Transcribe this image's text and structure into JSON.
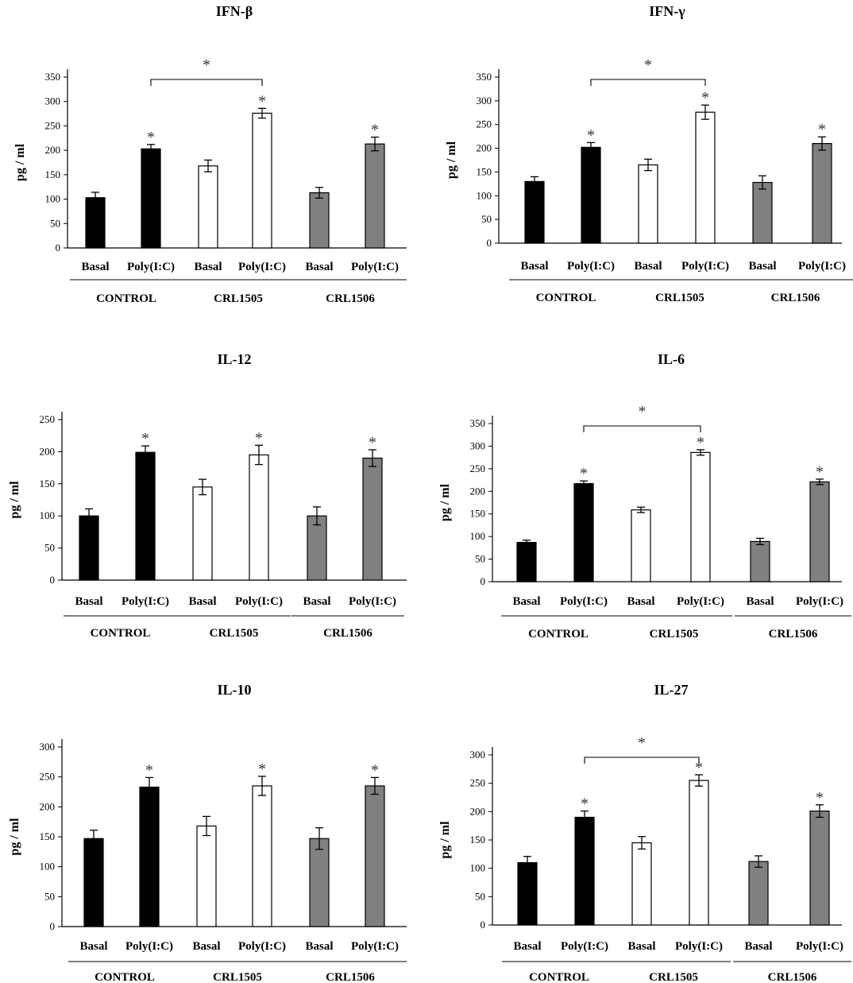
{
  "colors": {
    "CONTROL": "#000000",
    "CRL1505": "#ffffff",
    "CRL1506": "#808080",
    "axis": "#000000"
  },
  "chart_data": [
    {
      "type": "bar",
      "title": "IFN-β",
      "ylabel": "pg / ml",
      "ylim": [
        0,
        350
      ],
      "yticks": [
        "0",
        "50",
        "100",
        "150",
        "200",
        "250",
        "300",
        "350"
      ],
      "categories": [
        "Basal",
        "Poly(I:C)",
        "Basal",
        "Poly(I:C)",
        "Basal",
        "Poly(I:C)"
      ],
      "groups": [
        "CONTROL",
        "CRL1505",
        "CRL1506"
      ],
      "values": [
        103,
        203,
        168,
        276,
        113,
        213
      ],
      "errors": [
        11,
        9,
        12,
        10,
        11,
        14
      ],
      "significance": [
        false,
        true,
        false,
        true,
        false,
        true
      ],
      "bracket": {
        "from": 1,
        "to": 3,
        "label": "*"
      }
    },
    {
      "type": "bar",
      "title": "IFN-γ",
      "ylabel": "pg / ml",
      "ylim": [
        0,
        350
      ],
      "yticks": [
        "0",
        "50",
        "100",
        "150",
        "200",
        "250",
        "300",
        "350"
      ],
      "categories": [
        "Basal",
        "Poly(I:C)",
        "Basal",
        "Poly(I:C)",
        "Basal",
        "Poly(I:C)"
      ],
      "groups": [
        "CONTROL",
        "CRL1505",
        "CRL1506"
      ],
      "values": [
        130,
        202,
        165,
        276,
        128,
        210
      ],
      "errors": [
        10,
        10,
        12,
        15,
        14,
        14
      ],
      "significance": [
        false,
        true,
        false,
        true,
        false,
        true
      ],
      "bracket": {
        "from": 1,
        "to": 3,
        "label": "*"
      }
    },
    {
      "type": "bar",
      "title": "IL-12",
      "ylabel": "pg / ml",
      "ylim": [
        0,
        250
      ],
      "yticks": [
        "0",
        "50",
        "100",
        "150",
        "200",
        "250"
      ],
      "categories": [
        "Basal",
        "Poly(I:C)",
        "Basal",
        "Poly(I:C)",
        "Basal",
        "Poly(I:C)"
      ],
      "groups": [
        "CONTROL",
        "CRL1505",
        "CRL1506"
      ],
      "values": [
        100,
        199,
        145,
        195,
        100,
        190
      ],
      "errors": [
        11,
        10,
        12,
        15,
        14,
        13
      ],
      "significance": [
        false,
        true,
        false,
        true,
        false,
        true
      ],
      "bracket": null
    },
    {
      "type": "bar",
      "title": "IL-6",
      "ylabel": "pg / ml",
      "ylim": [
        0,
        350
      ],
      "yticks": [
        "0",
        "50",
        "100",
        "150",
        "200",
        "250",
        "300",
        "350"
      ],
      "categories": [
        "Basal",
        "Poly(I:C)",
        "Basal",
        "Poly(I:C)",
        "Basal",
        "Poly(I:C)"
      ],
      "groups": [
        "CONTROL",
        "CRL1505",
        "CRL1506"
      ],
      "values": [
        87,
        217,
        159,
        286,
        89,
        221
      ],
      "errors": [
        5,
        6,
        6,
        6,
        7,
        6
      ],
      "significance": [
        false,
        true,
        false,
        true,
        false,
        true
      ],
      "bracket": {
        "from": 1,
        "to": 3,
        "label": "*"
      }
    },
    {
      "type": "bar",
      "title": "IL-10",
      "ylabel": "pg / ml",
      "ylim": [
        0,
        300
      ],
      "yticks": [
        "0",
        "50",
        "100",
        "150",
        "200",
        "250",
        "300"
      ],
      "categories": [
        "Basal",
        "Poly(I:C)",
        "Basal",
        "Poly(I:C)",
        "Basal",
        "Poly(I:C)"
      ],
      "groups": [
        "CONTROL",
        "CRL1505",
        "CRL1506"
      ],
      "values": [
        147,
        233,
        168,
        235,
        147,
        235
      ],
      "errors": [
        14,
        16,
        16,
        16,
        18,
        14
      ],
      "significance": [
        false,
        true,
        false,
        true,
        false,
        true
      ],
      "bracket": null
    },
    {
      "type": "bar",
      "title": "IL-27",
      "ylabel": "pg / ml",
      "ylim": [
        0,
        300
      ],
      "yticks": [
        "0",
        "50",
        "100",
        "150",
        "200",
        "250",
        "300"
      ],
      "categories": [
        "Basal",
        "Poly(I:C)",
        "Basal",
        "Poly(I:C)",
        "Basal",
        "Poly(I:C)"
      ],
      "groups": [
        "CONTROL",
        "CRL1505",
        "CRL1506"
      ],
      "values": [
        110,
        190,
        145,
        255,
        112,
        201
      ],
      "errors": [
        11,
        11,
        11,
        10,
        10,
        11
      ],
      "significance": [
        false,
        true,
        false,
        true,
        false,
        true
      ],
      "bracket": {
        "from": 1,
        "to": 3,
        "label": "*"
      }
    }
  ]
}
